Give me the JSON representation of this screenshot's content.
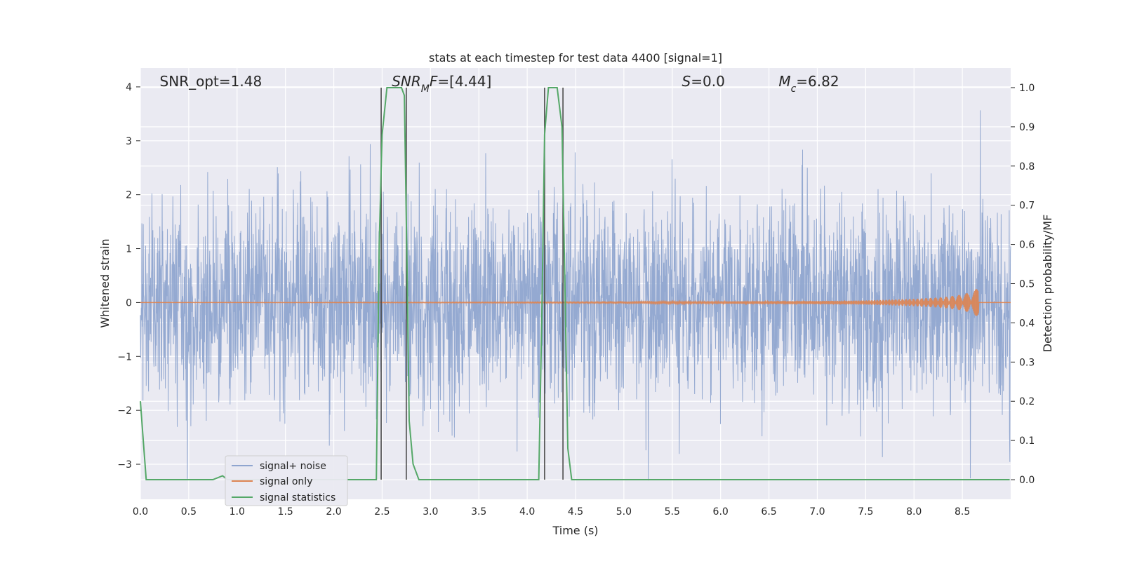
{
  "chart_data": {
    "type": "line",
    "title": "stats at each timestep for test data 4400 [signal=1]",
    "xlabel": "Time (s)",
    "ylabel": "Whitened strain",
    "y2label": "Detection probability/MF",
    "xlim": [
      0.0,
      9.0
    ],
    "ylim": [
      -3.65,
      4.35
    ],
    "y2lim": [
      -0.05,
      1.05
    ],
    "xticks": [
      "0.0",
      "0.5",
      "1.0",
      "1.5",
      "2.0",
      "2.5",
      "3.0",
      "3.5",
      "4.0",
      "4.5",
      "5.0",
      "5.5",
      "6.0",
      "6.5",
      "7.0",
      "7.5",
      "8.0",
      "8.5"
    ],
    "yticks": [
      "−3",
      "−2",
      "−1",
      "0",
      "1",
      "2",
      "3",
      "4"
    ],
    "y2ticks": [
      "0.0",
      "0.1",
      "0.2",
      "0.3",
      "0.4",
      "0.5",
      "0.6",
      "0.7",
      "0.8",
      "0.9",
      "1.0"
    ],
    "grid": true,
    "legend_position": "lower-left",
    "series": [
      {
        "name": "signal+ noise",
        "color": "#8fa5cf",
        "style": "dense noise trace, envelope roughly ±2 with spikes to ±3.8"
      },
      {
        "name": "signal only",
        "color": "#dd8452",
        "x": [
          0,
          5.0,
          6.0,
          7.0,
          7.5,
          8.0,
          8.3,
          8.5,
          8.6,
          8.67
        ],
        "amplitude": [
          0.0,
          0.01,
          0.02,
          0.03,
          0.04,
          0.07,
          0.1,
          0.15,
          0.2,
          0.28
        ]
      },
      {
        "name": "signal statistics",
        "color": "#55a868",
        "axis": "right",
        "x": [
          0.0,
          0.03,
          0.06,
          0.1,
          0.3,
          0.5,
          0.75,
          0.85,
          0.9,
          2.3,
          2.44,
          2.47,
          2.5,
          2.55,
          2.6,
          2.65,
          2.7,
          2.73,
          2.76,
          2.78,
          2.82,
          2.88,
          2.95,
          4.12,
          4.15,
          4.18,
          4.22,
          4.26,
          4.31,
          4.36,
          4.39,
          4.42,
          4.46,
          4.5,
          8.99
        ],
        "y": [
          0.2,
          0.1,
          0.0,
          0.0,
          0.0,
          0.0,
          0.0,
          0.01,
          0.0,
          0.0,
          0.0,
          0.6,
          0.88,
          1.0,
          1.0,
          1.0,
          1.0,
          0.98,
          0.5,
          0.15,
          0.04,
          0.0,
          0.0,
          0.0,
          0.4,
          0.88,
          1.0,
          1.0,
          1.0,
          0.9,
          0.5,
          0.08,
          0.0,
          0.0,
          0.0
        ]
      }
    ],
    "vlines": [
      2.49,
      2.75,
      4.18,
      4.37
    ],
    "annotations": [
      {
        "text": "SNR_opt=1.48",
        "x": 0.2
      },
      {
        "parts": [
          {
            "t": "SNR",
            "it": true
          },
          {
            "t": "M",
            "it": true,
            "sub": true
          },
          {
            "t": "F",
            "it": true
          },
          {
            "t": "=[4.44]",
            "it": false
          }
        ],
        "x": 2.6
      },
      {
        "parts": [
          {
            "t": "S",
            "it": true
          },
          {
            "t": "=0.0",
            "it": false
          }
        ],
        "x": 5.6
      },
      {
        "parts": [
          {
            "t": "M",
            "it": true
          },
          {
            "t": "c",
            "it": true,
            "sub": true
          },
          {
            "t": "=6.82",
            "it": false
          }
        ],
        "x": 6.6
      }
    ]
  },
  "colors": {
    "plot_bg": "#eaeaf2",
    "grid": "#ffffff",
    "noise": "#8fa5cf",
    "signal": "#dd8452",
    "stats": "#55a868",
    "vline": "#404040"
  }
}
